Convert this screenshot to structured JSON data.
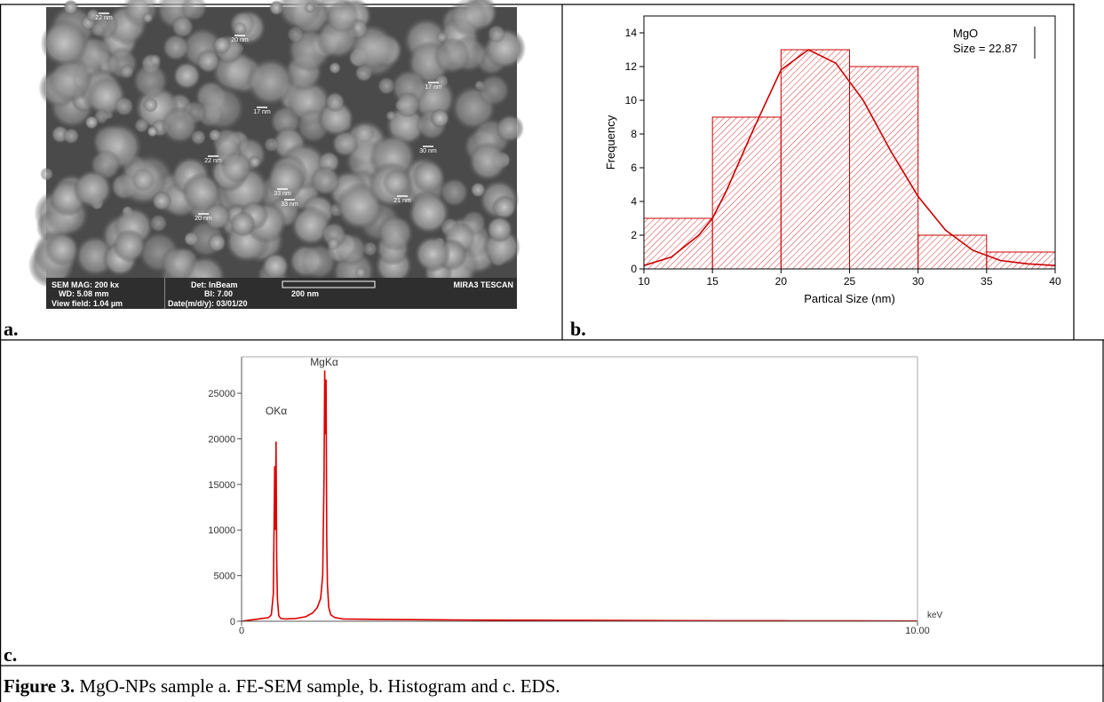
{
  "sem_image": {
    "scale_labels": [
      "22 nm",
      "20 nm",
      "17 nm",
      "17 nm",
      "22 nm",
      "30 nm",
      "33 nm",
      "33 nm",
      "21 nm",
      "20 nm"
    ],
    "info_bar": [
      "SEM MAG: 200 kx",
      "Det: InBeam",
      "MIRA3 TESCAN",
      "WD: 5.08 mm",
      "BI: 7.00",
      "200 nm",
      "View field: 1.04 µm",
      "Date(m/d/y): 03/01/20"
    ]
  },
  "panel_labels": [
    "a.",
    "b.",
    "c."
  ],
  "chart_data": [
    {
      "type": "histogram",
      "x_label": "Partical Size (nm)",
      "y_label": "Frequency",
      "color": "#cc0000",
      "bins": [
        10,
        15,
        20,
        25,
        30,
        35,
        40
      ],
      "values": [
        3,
        9,
        13,
        12,
        2,
        1
      ],
      "xlim": [
        10,
        40
      ],
      "ylim": [
        0,
        15
      ],
      "xticks": [
        10,
        15,
        20,
        25,
        30,
        35,
        40
      ],
      "yticks": [
        0,
        2,
        4,
        6,
        8,
        10,
        12,
        14
      ],
      "annotations": [
        "MgO",
        "Size = 22.87"
      ],
      "fit": {
        "x": [
          10,
          12,
          14,
          15,
          16,
          18,
          20,
          22,
          24,
          26,
          28,
          30,
          32,
          34,
          36,
          38,
          40
        ],
        "values": [
          0.2,
          0.7,
          2.0,
          3.0,
          4.6,
          8.3,
          11.8,
          13,
          12.2,
          10,
          7,
          4.3,
          2.3,
          1.1,
          0.5,
          0.3,
          0.2
        ]
      }
    },
    {
      "type": "line",
      "x_label": "keV",
      "color": "#dd0000",
      "x": [
        0,
        0.1,
        0.2,
        0.3,
        0.4,
        0.44,
        0.47,
        0.49,
        0.5,
        0.51,
        0.52,
        0.53,
        0.55,
        0.58,
        0.65,
        0.8,
        0.95,
        1.05,
        1.12,
        1.17,
        1.2,
        1.22,
        1.23,
        1.24,
        1.25,
        1.26,
        1.27,
        1.29,
        1.32,
        1.38,
        1.5,
        2,
        3,
        4,
        5,
        6,
        7,
        8,
        9,
        10
      ],
      "values": [
        0,
        100,
        200,
        300,
        400,
        700,
        3000,
        17000,
        10000,
        19700,
        6500,
        2500,
        600,
        300,
        250,
        300,
        500,
        900,
        1500,
        2500,
        5000,
        15800,
        27500,
        20500,
        26500,
        9000,
        4000,
        1500,
        700,
        400,
        250,
        200,
        150,
        120,
        100,
        80,
        60,
        50,
        40,
        30
      ],
      "xlim": [
        0,
        10
      ],
      "ylim": [
        0,
        29000
      ],
      "xticks": [
        0,
        {
          "value": 10,
          "label": "10.00"
        }
      ],
      "yticks": [
        0,
        5000,
        10000,
        15000,
        20000,
        25000
      ],
      "annotations": [
        "OKα",
        "MgKα"
      ]
    }
  ],
  "caption": {
    "label": "Figure 3.",
    "text": "MgO-NPs sample a. FE-SEM sample, b. Histogram and c. EDS."
  }
}
